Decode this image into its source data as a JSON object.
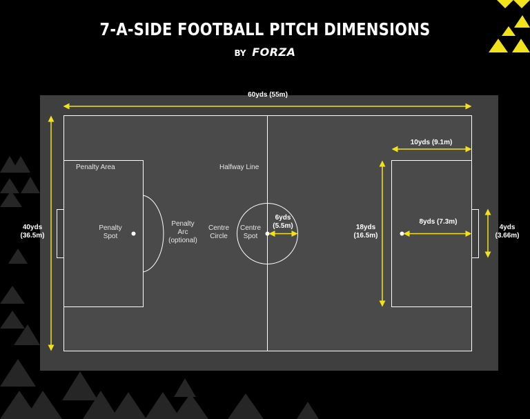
{
  "header": {
    "title": "7-A-SIDE FOOTBALL PITCH DIMENSIONS",
    "by": "BY",
    "brand": "FORZA"
  },
  "colors": {
    "background": "#000000",
    "surround": "#3f3f3f",
    "pitch": "#4a4a4a",
    "lines": "#ffffff",
    "accent": "#f2e21c",
    "decor": "#262626"
  },
  "pitch": {
    "labels": {
      "penalty_area": "Penalty Area",
      "halfway_line": "Halfway Line",
      "penalty_spot_1": "Penalty",
      "penalty_spot_2": "Spot",
      "penalty_arc_1": "Penalty",
      "penalty_arc_2": "Arc",
      "penalty_arc_3": "(optional)",
      "centre_circle_1": "Centre",
      "centre_circle_2": "Circle",
      "centre_spot_1": "Centre",
      "centre_spot_2": "Spot"
    },
    "dimensions": {
      "length_1": "60yds (55m)",
      "width_1": "40yds",
      "width_2": "(36.5m)",
      "circle_radius_1": "6yds",
      "circle_radius_2": "(5.5m)",
      "area_length_1": "10yds (9.1m)",
      "area_width_1": "18yds",
      "area_width_2": "(16.5m)",
      "spot_distance_1": "8yds (7.3m)",
      "goal_width_1": "4yds",
      "goal_width_2": "(3.66m)"
    }
  }
}
